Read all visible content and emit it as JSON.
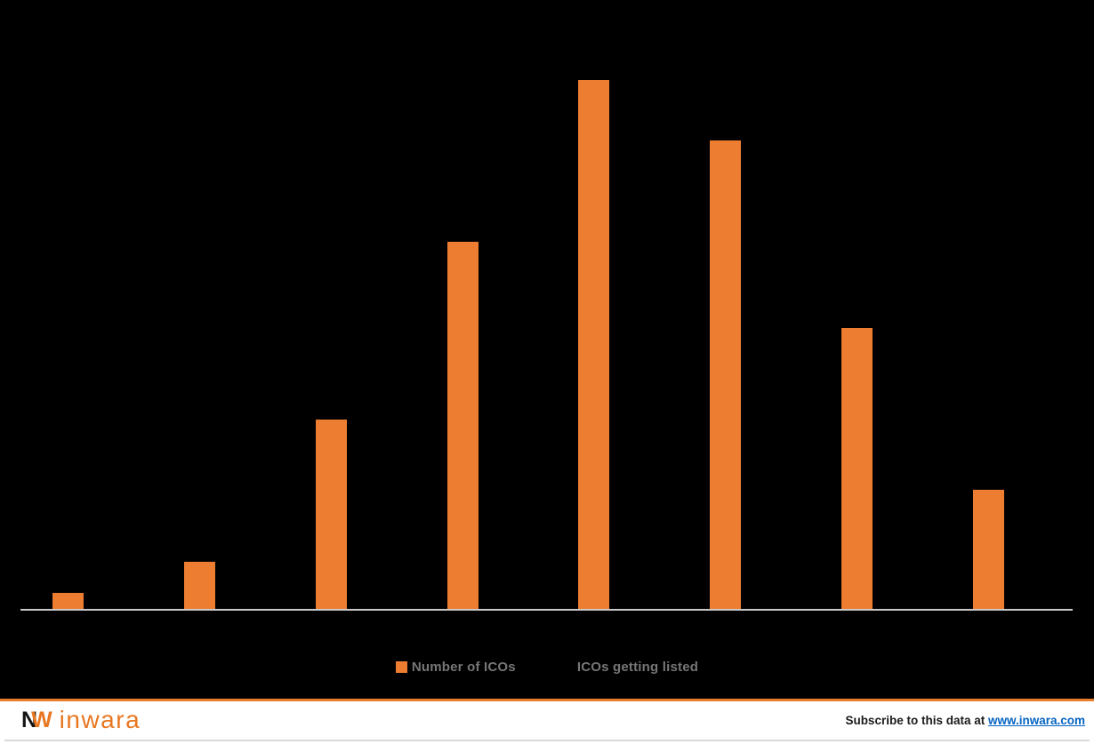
{
  "chart_data": {
    "type": "bar",
    "title": "",
    "categories": [
      "",
      "",
      "",
      "",
      "",
      "",
      "",
      ""
    ],
    "categories_note": "x-axis tick labels are rendered black-on-black and are not visible in the pixels",
    "series": [
      {
        "name": "Number of ICOs",
        "type": "bar",
        "color": "#ED7D31",
        "values_pct_of_max": [
          3.2,
          9.0,
          35.9,
          69.5,
          100.0,
          88.6,
          53.2,
          22.7
        ]
      },
      {
        "name": "ICOs getting listed",
        "type": "line",
        "color": "#000000",
        "values_pct_of_max": [],
        "note": "line series invisible against black background"
      }
    ],
    "value_labels_visible": false,
    "gridlines": false,
    "axis": {
      "baseline_color": "#C9C9C9",
      "tick_labels_visible": false
    },
    "legend_position": "bottom-center",
    "note": "No title, axis or data labels are visible (black text on black background). Bar values are relative heights as percent of the tallest bar."
  },
  "legend": {
    "items": [
      {
        "label": "Number of ICOs",
        "marker_color": "#ED7D31",
        "marker_shape": "square"
      },
      {
        "label": "ICOs getting listed",
        "marker_color": "#000000",
        "marker_shape": "line"
      }
    ],
    "text_color": "#767676"
  },
  "footer": {
    "brand": {
      "mark_letter_1": "N",
      "mark_letter_2": "W",
      "name": "inwara"
    },
    "subscribe_text": "Subscribe to this data at ",
    "subscribe_link": "www.inwara.com",
    "accent_color": "#E87D2E",
    "link_color": "#0563C1"
  }
}
